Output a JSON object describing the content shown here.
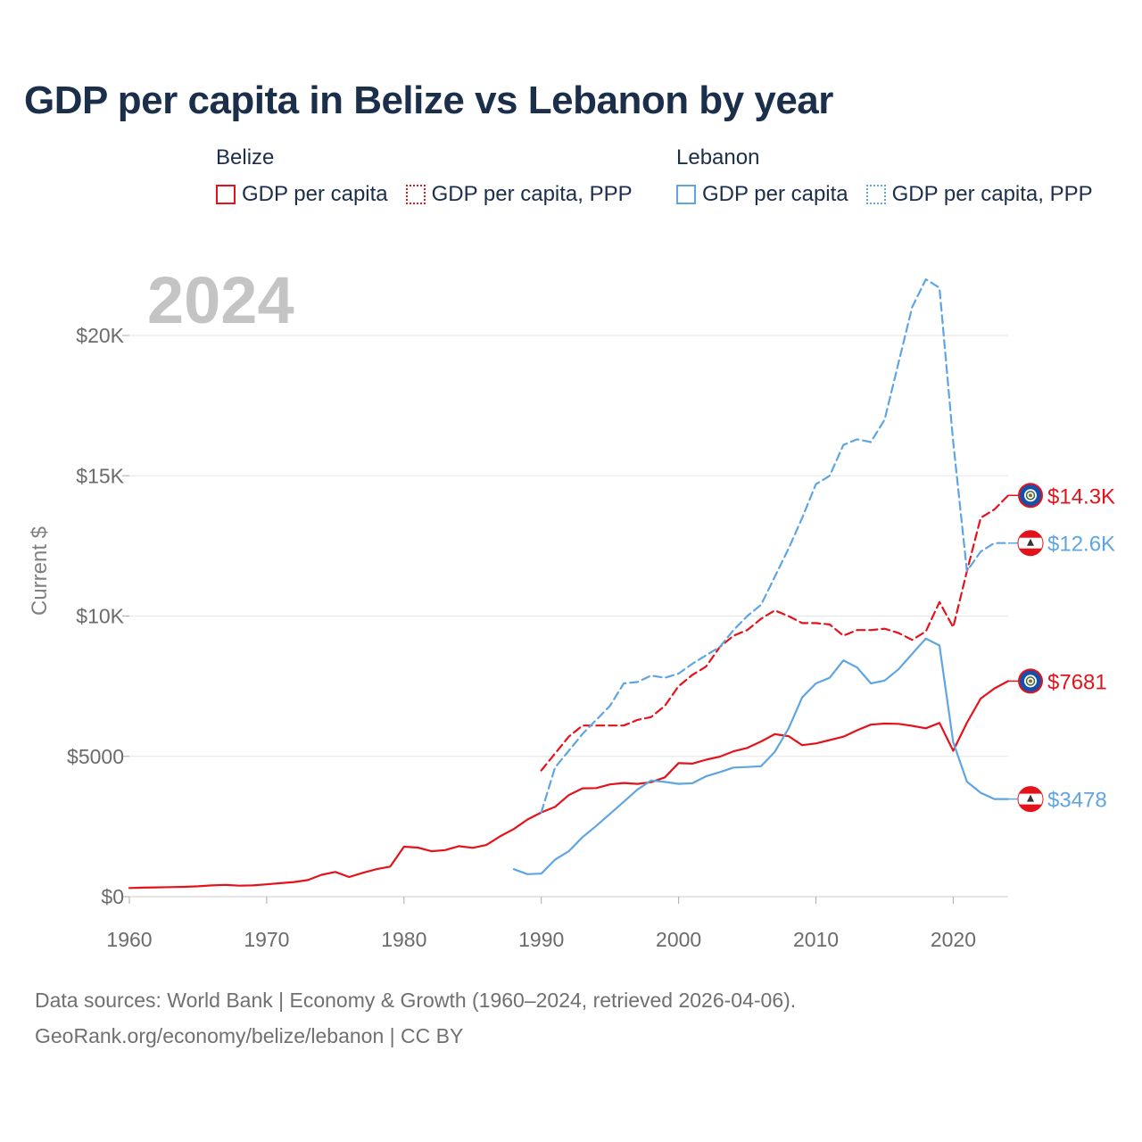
{
  "title": "GDP per capita in Belize vs Lebanon by year",
  "legend": [
    {
      "country": "Belize",
      "items": [
        {
          "label": "GDP per capita",
          "style": "solid"
        },
        {
          "label": "GDP per capita, PPP",
          "style": "dashed"
        }
      ]
    },
    {
      "country": "Lebanon",
      "items": [
        {
          "label": "GDP per capita",
          "style": "solid"
        },
        {
          "label": "GDP per capita, PPP",
          "style": "dashed"
        }
      ]
    }
  ],
  "colors": {
    "belize": "#e4131b",
    "lebanon": "#5fa5e3",
    "title": "#1b2f4b",
    "grid": "#e5e5e5"
  },
  "flag_icons": {
    "belize": "belize-flag-icon",
    "lebanon": "lebanon-flag-icon"
  },
  "footer": {
    "source": "Data sources: World Bank | Economy & Growth (1960–2024, retrieved 2026-04-06).",
    "credit": "GeoRank.org/economy/belize/lebanon | CC BY"
  },
  "chart_data": {
    "type": "line",
    "title": "GDP per capita in Belize vs Lebanon by year",
    "xlabel": "",
    "ylabel": "Current $",
    "year_label": "2024",
    "xlim": [
      1960,
      2024
    ],
    "ylim": [
      0,
      20000
    ],
    "x_ticks": [
      1960,
      1970,
      1980,
      1990,
      2000,
      2010,
      2020
    ],
    "x_tick_labels": [
      "1960",
      "1970",
      "1980",
      "1990",
      "2000",
      "2010",
      "2020"
    ],
    "y_ticks": [
      0,
      5000,
      10000,
      15000,
      20000
    ],
    "y_tick_labels": [
      "$0",
      "$5000",
      "$10K",
      "$15K",
      "$20K"
    ],
    "grid": true,
    "series": [
      {
        "name": "Belize GDP per capita PPP",
        "country": "belize",
        "style": "dashed",
        "end_label": "$14.3K",
        "x": [
          1990,
          1991,
          1992,
          1993,
          1994,
          1995,
          1996,
          1997,
          1998,
          1999,
          2000,
          2001,
          2002,
          2003,
          2004,
          2005,
          2006,
          2007,
          2008,
          2009,
          2010,
          2011,
          2012,
          2013,
          2014,
          2015,
          2016,
          2017,
          2018,
          2019,
          2020,
          2021,
          2022,
          2023,
          2024
        ],
        "y": [
          4500,
          5100,
          5700,
          6100,
          6100,
          6100,
          6100,
          6300,
          6400,
          6800,
          7500,
          7900,
          8200,
          8900,
          9300,
          9500,
          9900,
          10200,
          10000,
          9750,
          9750,
          9700,
          9300,
          9500,
          9500,
          9550,
          9400,
          9150,
          9450,
          10500,
          9600,
          11600,
          13500,
          13800,
          14300
        ]
      },
      {
        "name": "Belize GDP per capita",
        "country": "belize",
        "style": "solid",
        "end_label": "$7681",
        "x": [
          1960,
          1961,
          1962,
          1963,
          1964,
          1965,
          1966,
          1967,
          1968,
          1969,
          1970,
          1971,
          1972,
          1973,
          1974,
          1975,
          1976,
          1977,
          1978,
          1979,
          1980,
          1981,
          1982,
          1983,
          1984,
          1985,
          1986,
          1987,
          1988,
          1989,
          1990,
          1991,
          1992,
          1993,
          1994,
          1995,
          1996,
          1997,
          1998,
          1999,
          2000,
          2001,
          2002,
          2003,
          2004,
          2005,
          2006,
          2007,
          2008,
          2009,
          2010,
          2011,
          2012,
          2013,
          2014,
          2015,
          2016,
          2017,
          2018,
          2019,
          2020,
          2021,
          2022,
          2023,
          2024
        ],
        "y": [
          310,
          320,
          330,
          340,
          350,
          370,
          400,
          420,
          390,
          400,
          440,
          480,
          520,
          590,
          780,
          880,
          700,
          850,
          980,
          1070,
          1780,
          1750,
          1620,
          1660,
          1800,
          1740,
          1840,
          2150,
          2410,
          2750,
          3000,
          3200,
          3620,
          3860,
          3870,
          4000,
          4050,
          4020,
          4080,
          4250,
          4760,
          4740,
          4880,
          4990,
          5180,
          5300,
          5530,
          5790,
          5720,
          5400,
          5460,
          5580,
          5700,
          5930,
          6130,
          6170,
          6160,
          6090,
          6000,
          6190,
          5200,
          6200,
          7060,
          7420,
          7681
        ]
      },
      {
        "name": "Lebanon GDP per capita PPP",
        "country": "lebanon",
        "style": "dashed",
        "end_label": "$12.6K",
        "x": [
          1990,
          1991,
          1992,
          1993,
          1994,
          1995,
          1996,
          1997,
          1998,
          1999,
          2000,
          2001,
          2002,
          2003,
          2004,
          2005,
          2006,
          2007,
          2008,
          2009,
          2010,
          2011,
          2012,
          2013,
          2014,
          2015,
          2016,
          2017,
          2018,
          2019,
          2020,
          2021,
          2022,
          2023,
          2024
        ],
        "y": [
          3000,
          4600,
          5200,
          5800,
          6300,
          6800,
          7600,
          7650,
          7880,
          7800,
          7950,
          8300,
          8600,
          8900,
          9500,
          10000,
          10400,
          11400,
          12400,
          13500,
          14700,
          15000,
          16100,
          16300,
          16200,
          17000,
          19000,
          21000,
          22000,
          21700,
          16200,
          11600,
          12300,
          12600,
          12600
        ]
      },
      {
        "name": "Lebanon GDP per capita",
        "country": "lebanon",
        "style": "solid",
        "end_label": "$3478",
        "x": [
          1988,
          1989,
          1990,
          1991,
          1992,
          1993,
          1994,
          1995,
          1996,
          1997,
          1998,
          1999,
          2000,
          2001,
          2002,
          2003,
          2004,
          2005,
          2006,
          2007,
          2008,
          2009,
          2010,
          2011,
          2012,
          2013,
          2014,
          2015,
          2016,
          2017,
          2018,
          2019,
          2020,
          2021,
          2022,
          2023,
          2024
        ],
        "y": [
          980,
          800,
          820,
          1320,
          1620,
          2120,
          2520,
          2950,
          3380,
          3820,
          4140,
          4090,
          4020,
          4040,
          4290,
          4440,
          4600,
          4620,
          4650,
          5160,
          5990,
          7100,
          7600,
          7800,
          8420,
          8170,
          7600,
          7700,
          8100,
          8650,
          9200,
          8950,
          5500,
          4100,
          3700,
          3478,
          3478
        ]
      }
    ]
  }
}
